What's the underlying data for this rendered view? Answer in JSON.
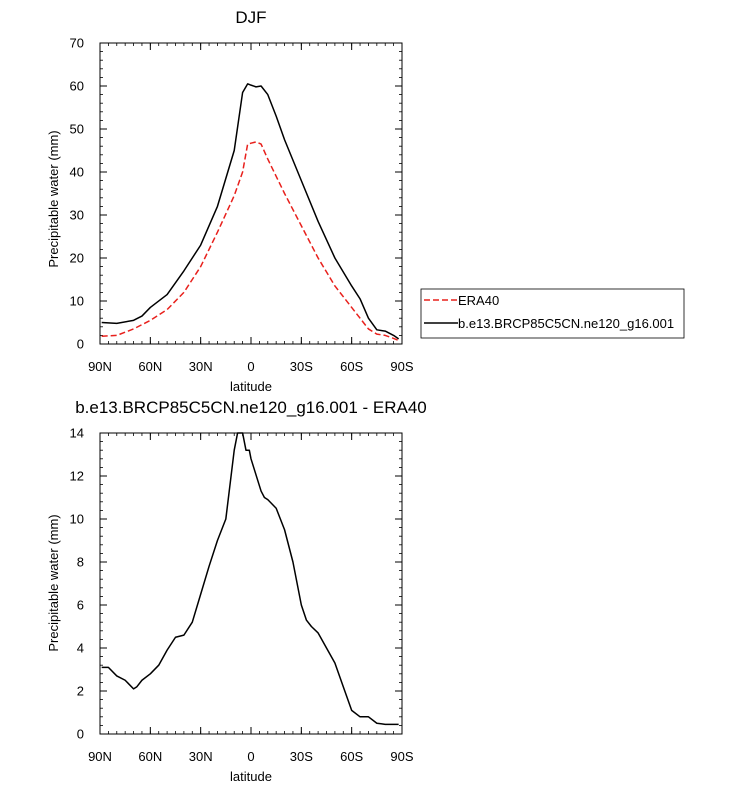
{
  "chart_data": [
    {
      "type": "line",
      "title": "DJF",
      "xlabel": "latitude",
      "ylabel": "Precipitable water (mm)",
      "xlim": [
        90,
        -90
      ],
      "ylim": [
        0,
        70
      ],
      "xticks": [
        90,
        60,
        30,
        0,
        -30,
        -60,
        -90
      ],
      "xtick_labels": [
        "90N",
        "60N",
        "30N",
        "0",
        "30S",
        "60S",
        "90S"
      ],
      "yticks": [
        0,
        10,
        20,
        30,
        40,
        50,
        60,
        70
      ],
      "ytick_labels": [
        "0",
        "10",
        "20",
        "30",
        "40",
        "50",
        "60",
        "70"
      ],
      "grid": false,
      "legend": "right",
      "series": [
        {
          "name": "ERA40",
          "color": "#e8201c",
          "dash": "dashed",
          "x": [
            89,
            80,
            70,
            60,
            50,
            40,
            30,
            20,
            10,
            5,
            2,
            0,
            -3,
            -6,
            -10,
            -15,
            -20,
            -30,
            -40,
            -50,
            -60,
            -65,
            -70,
            -75,
            -80,
            -85,
            -88
          ],
          "y": [
            1.8,
            2.0,
            3.5,
            5.5,
            8.0,
            12.0,
            18.0,
            26.0,
            34.5,
            40.0,
            46.5,
            46.7,
            47.0,
            46.5,
            43.0,
            39.0,
            35.0,
            27.5,
            20.0,
            13.5,
            8.5,
            6.0,
            3.5,
            2.3,
            2.0,
            1.3,
            0.8
          ]
        },
        {
          "name": "b.e13.BRCP85C5CN.ne120_g16.001",
          "color": "#000000",
          "dash": "solid",
          "x": [
            89,
            80,
            70,
            65,
            60,
            50,
            40,
            30,
            20,
            10,
            5,
            2,
            0,
            -3,
            -6,
            -10,
            -15,
            -20,
            -30,
            -40,
            -50,
            -60,
            -65,
            -70,
            -75,
            -80,
            -85,
            -88
          ],
          "y": [
            5.0,
            4.8,
            5.5,
            6.5,
            8.5,
            11.5,
            17.0,
            23.0,
            32.0,
            45.0,
            58.5,
            60.5,
            60.2,
            59.8,
            60.0,
            58.0,
            53.0,
            47.5,
            38.0,
            28.5,
            20.0,
            13.5,
            10.5,
            6.0,
            3.3,
            3.0,
            2.0,
            1.2
          ]
        }
      ]
    },
    {
      "type": "line",
      "title": "b.e13.BRCP85C5CN.ne120_g16.001 - ERA40",
      "xlabel": "latitude",
      "ylabel": "Precipitable water (mm)",
      "xlim": [
        90,
        -90
      ],
      "ylim": [
        0,
        14
      ],
      "xticks": [
        90,
        60,
        30,
        0,
        -30,
        -60,
        -90
      ],
      "xtick_labels": [
        "90N",
        "60N",
        "30N",
        "0",
        "30S",
        "60S",
        "90S"
      ],
      "yticks": [
        0,
        2,
        4,
        6,
        8,
        10,
        12,
        14
      ],
      "ytick_labels": [
        "0",
        "2",
        "4",
        "6",
        "8",
        "10",
        "12",
        "14"
      ],
      "grid": false,
      "series": [
        {
          "color": "#000000",
          "dash": "solid",
          "x": [
            89,
            85,
            80,
            75,
            70,
            68,
            65,
            60,
            55,
            50,
            45,
            40,
            35,
            30,
            25,
            20,
            15,
            10,
            8,
            5,
            3,
            1,
            0,
            -2,
            -4,
            -6,
            -8,
            -10,
            -15,
            -20,
            -25,
            -30,
            -33,
            -36,
            -40,
            -45,
            -50,
            -55,
            -60,
            -65,
            -70,
            -75,
            -80,
            -85,
            -88
          ],
          "y": [
            3.1,
            3.1,
            2.7,
            2.5,
            2.1,
            2.2,
            2.5,
            2.8,
            3.2,
            3.9,
            4.5,
            4.6,
            5.2,
            6.5,
            7.8,
            9.0,
            10.0,
            13.2,
            14.0,
            14.0,
            13.2,
            13.2,
            12.8,
            12.3,
            11.8,
            11.3,
            11.0,
            10.9,
            10.5,
            9.5,
            8.0,
            6.0,
            5.3,
            5.0,
            4.7,
            4.0,
            3.3,
            2.2,
            1.1,
            0.8,
            0.8,
            0.5,
            0.45,
            0.45,
            0.45
          ]
        }
      ]
    }
  ]
}
